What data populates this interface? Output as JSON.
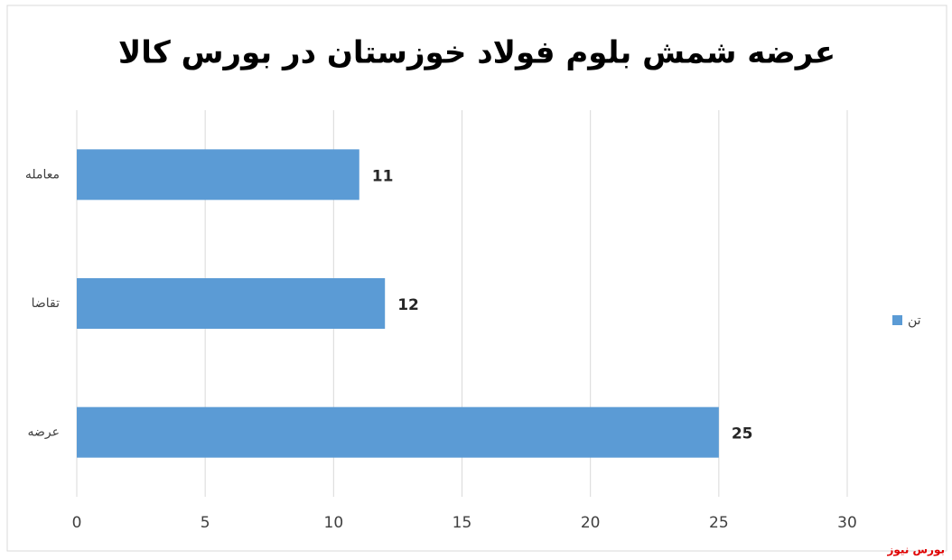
{
  "chart_data": {
    "type": "hbar",
    "title": "عرضه شمش بلوم فولاد خوزستان در بورس کالا",
    "categories": [
      "معامله",
      "تقاضا",
      "عرضه"
    ],
    "series": [
      {
        "name": "تن",
        "color": "#5b9bd5",
        "values": [
          11,
          12,
          25
        ]
      }
    ],
    "xlim": [
      0,
      30
    ],
    "xticks": [
      0,
      5,
      10,
      15,
      20,
      25,
      30
    ],
    "grid": true,
    "legend": "right",
    "source": "بورس نیوز"
  }
}
